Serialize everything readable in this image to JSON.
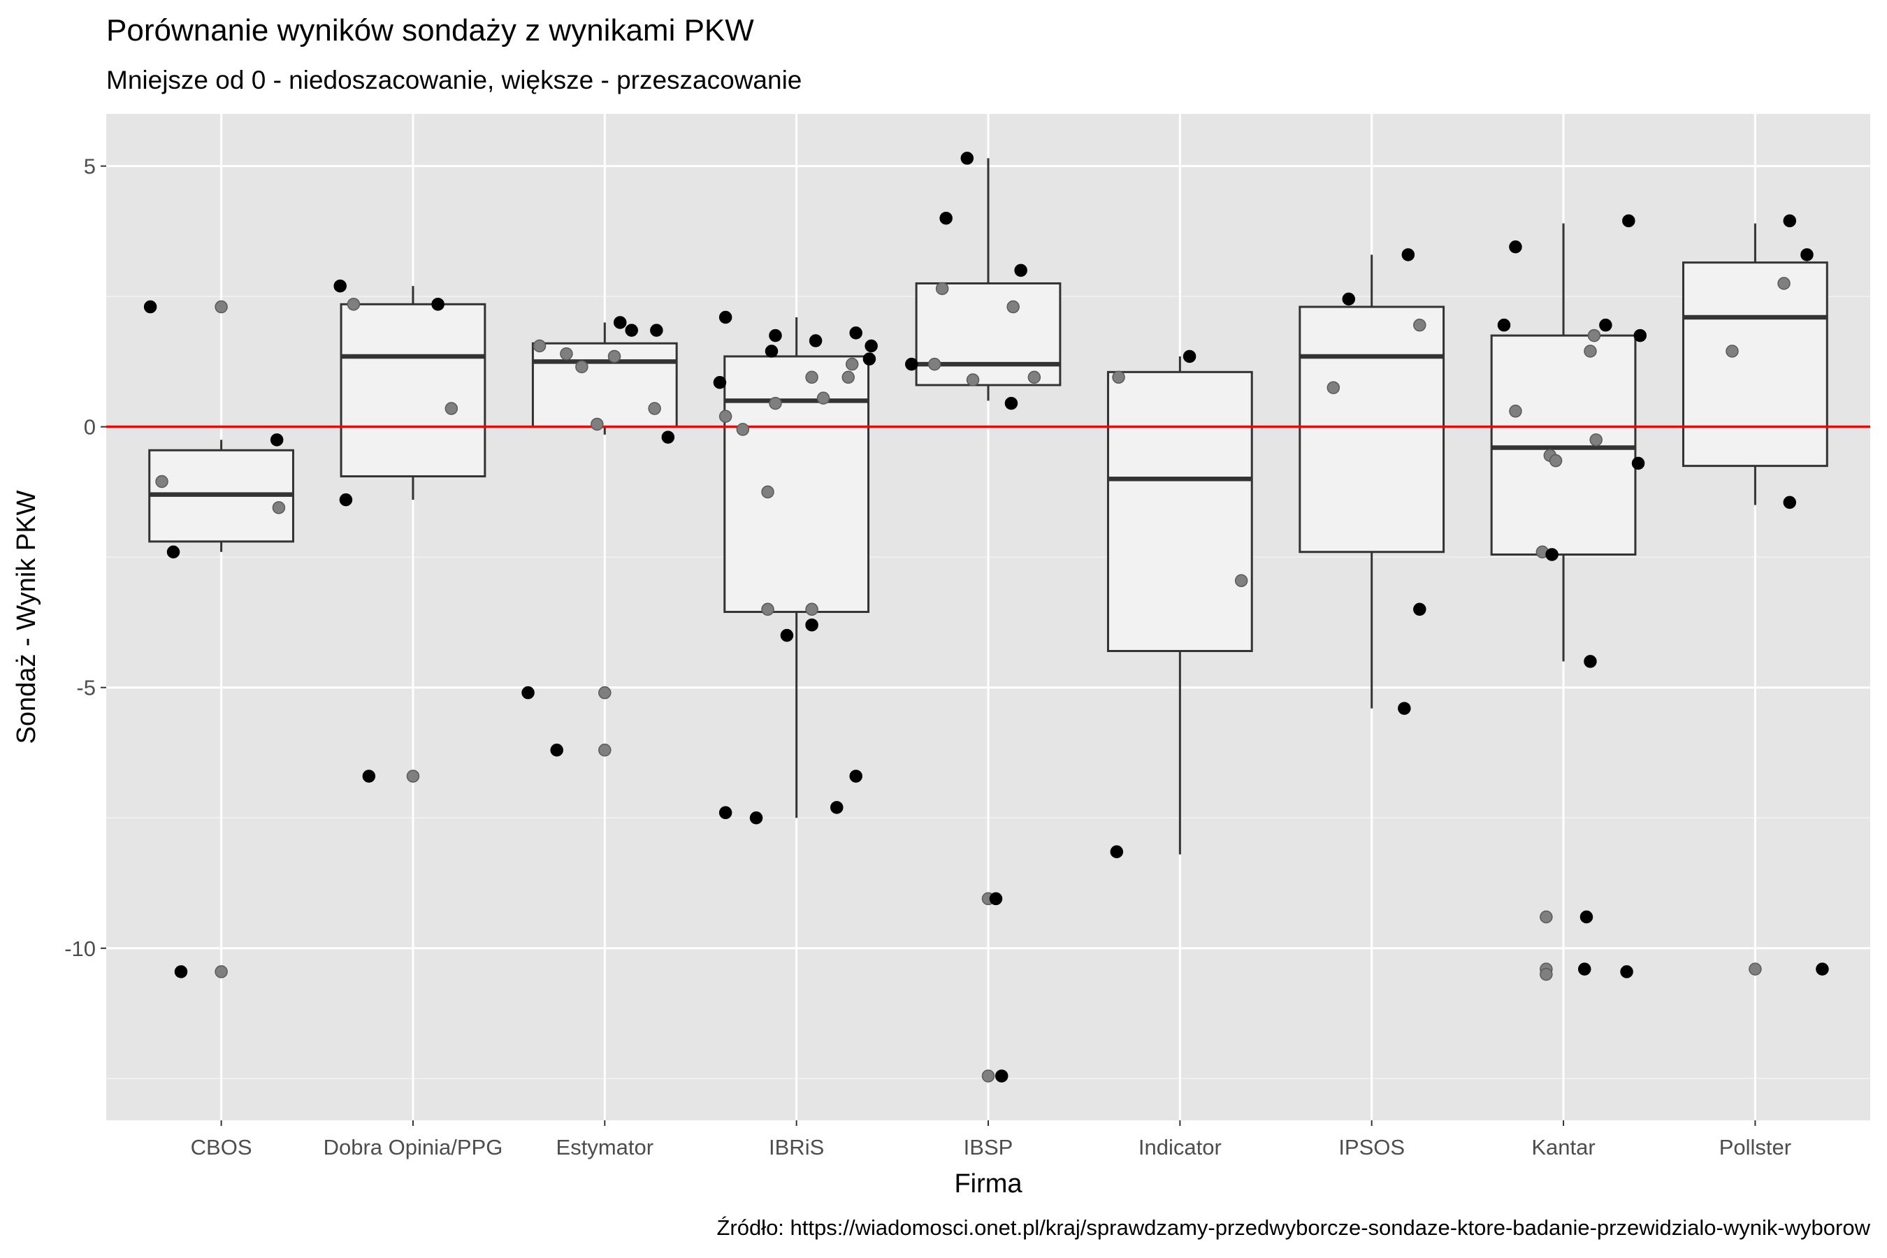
{
  "chart_data": {
    "type": "boxplot",
    "title": "Porównanie wyników sondaży z wynikami PKW",
    "subtitle": "Mniejsze od 0 - niedoszacowanie, większe - przeszacowanie",
    "xlabel": "Firma",
    "ylabel": "Sondaż - Wynik PKW",
    "caption": "Źródło: https://wiadomosci.onet.pl/kraj/sprawdzamy-przedwyborcze-sondaze-ktore-badanie-przewidzialo-wynik-wyborow",
    "ylim": [
      -13.3,
      6.0
    ],
    "yticks": [
      -10,
      -5,
      0,
      5
    ],
    "ytick_labels": [
      "-10",
      "-5",
      "0",
      "5"
    ],
    "reference_line": {
      "y": 0,
      "color": "#ff0000"
    },
    "grid": true,
    "categories": [
      "CBOS",
      "Dobra Opinia/PPG",
      "Estymator",
      "IBRiS",
      "IBSP",
      "Indicator",
      "IPSOS",
      "Kantar",
      "Pollster"
    ],
    "boxes": [
      {
        "category": "CBOS",
        "whisker_low": -2.4,
        "q1": -2.2,
        "median": -1.3,
        "q3": -0.45,
        "whisker_high": -0.25
      },
      {
        "category": "Dobra Opinia/PPG",
        "whisker_low": -1.4,
        "q1": -0.95,
        "median": 1.35,
        "q3": 2.35,
        "whisker_high": 2.7
      },
      {
        "category": "Estymator",
        "whisker_low": -0.15,
        "q1": 0.0,
        "median": 1.25,
        "q3": 1.6,
        "whisker_high": 2.0
      },
      {
        "category": "IBRiS",
        "whisker_low": -7.5,
        "q1": -3.55,
        "median": 0.5,
        "q3": 1.35,
        "whisker_high": 2.1
      },
      {
        "category": "IBSP",
        "whisker_low": 0.5,
        "q1": 0.8,
        "median": 1.2,
        "q3": 2.75,
        "whisker_high": 5.15
      },
      {
        "category": "Indicator",
        "whisker_low": -8.2,
        "q1": -4.3,
        "median": -1.0,
        "q3": 1.05,
        "whisker_high": 1.35
      },
      {
        "category": "IPSOS",
        "whisker_low": -5.4,
        "q1": -2.4,
        "median": 1.35,
        "q3": 2.3,
        "whisker_high": 3.3
      },
      {
        "category": "Kantar",
        "whisker_low": -4.5,
        "q1": -2.45,
        "median": -0.4,
        "q3": 1.75,
        "whisker_high": 3.9
      },
      {
        "category": "Pollster",
        "whisker_low": -1.5,
        "q1": -0.75,
        "median": 2.1,
        "q3": 3.15,
        "whisker_high": 3.9
      }
    ],
    "points": [
      {
        "category": "CBOS",
        "points": [
          {
            "dx": -0.37,
            "y": 2.3,
            "fill": "black"
          },
          {
            "dx": -0.31,
            "y": -1.05,
            "fill": "grey"
          },
          {
            "dx": -0.25,
            "y": -2.4,
            "fill": "black"
          },
          {
            "dx": -0.21,
            "y": -10.45,
            "fill": "black"
          },
          {
            "dx": 0.0,
            "y": 2.3,
            "fill": "grey"
          },
          {
            "dx": 0.0,
            "y": -10.45,
            "fill": "grey"
          },
          {
            "dx": 0.29,
            "y": -0.25,
            "fill": "black"
          },
          {
            "dx": 0.3,
            "y": -1.55,
            "fill": "grey"
          }
        ]
      },
      {
        "category": "Dobra Opinia/PPG",
        "points": [
          {
            "dx": -0.38,
            "y": 2.7,
            "fill": "black"
          },
          {
            "dx": -0.31,
            "y": 2.35,
            "fill": "grey"
          },
          {
            "dx": -0.35,
            "y": -1.4,
            "fill": "black"
          },
          {
            "dx": -0.23,
            "y": -6.7,
            "fill": "black"
          },
          {
            "dx": 0.0,
            "y": -6.7,
            "fill": "grey"
          },
          {
            "dx": 0.13,
            "y": 2.35,
            "fill": "grey"
          },
          {
            "dx": 0.13,
            "y": 2.35,
            "fill": "black"
          },
          {
            "dx": 0.2,
            "y": 0.35,
            "fill": "grey"
          }
        ]
      },
      {
        "category": "Estymator",
        "points": [
          {
            "dx": -0.4,
            "y": -5.1,
            "fill": "black"
          },
          {
            "dx": -0.34,
            "y": 1.55,
            "fill": "grey"
          },
          {
            "dx": -0.25,
            "y": -6.2,
            "fill": "black"
          },
          {
            "dx": -0.2,
            "y": 1.4,
            "fill": "grey"
          },
          {
            "dx": -0.12,
            "y": 1.15,
            "fill": "grey"
          },
          {
            "dx": -0.04,
            "y": 0.05,
            "fill": "grey"
          },
          {
            "dx": 0.0,
            "y": -5.1,
            "fill": "grey"
          },
          {
            "dx": 0.0,
            "y": -6.2,
            "fill": "grey"
          },
          {
            "dx": 0.05,
            "y": 1.35,
            "fill": "grey"
          },
          {
            "dx": 0.08,
            "y": 2.0,
            "fill": "black"
          },
          {
            "dx": 0.14,
            "y": 1.85,
            "fill": "black"
          },
          {
            "dx": 0.26,
            "y": 0.35,
            "fill": "grey"
          },
          {
            "dx": 0.27,
            "y": 1.85,
            "fill": "black"
          },
          {
            "dx": 0.33,
            "y": -0.2,
            "fill": "black"
          }
        ]
      },
      {
        "category": "IBRiS",
        "points": [
          {
            "dx": -0.4,
            "y": 0.85,
            "fill": "black"
          },
          {
            "dx": -0.37,
            "y": 0.2,
            "fill": "grey"
          },
          {
            "dx": -0.37,
            "y": 2.1,
            "fill": "black"
          },
          {
            "dx": -0.37,
            "y": -7.4,
            "fill": "black"
          },
          {
            "dx": -0.28,
            "y": -0.05,
            "fill": "grey"
          },
          {
            "dx": -0.21,
            "y": -7.5,
            "fill": "black"
          },
          {
            "dx": -0.15,
            "y": -1.25,
            "fill": "grey"
          },
          {
            "dx": -0.13,
            "y": 1.45,
            "fill": "black"
          },
          {
            "dx": -0.15,
            "y": -3.5,
            "fill": "grey"
          },
          {
            "dx": -0.11,
            "y": 1.75,
            "fill": "black"
          },
          {
            "dx": -0.11,
            "y": 0.45,
            "fill": "grey"
          },
          {
            "dx": -0.05,
            "y": -4.0,
            "fill": "black"
          },
          {
            "dx": 0.08,
            "y": 0.95,
            "fill": "grey"
          },
          {
            "dx": 0.08,
            "y": -3.5,
            "fill": "grey"
          },
          {
            "dx": 0.08,
            "y": -3.8,
            "fill": "black"
          },
          {
            "dx": 0.1,
            "y": 1.65,
            "fill": "black"
          },
          {
            "dx": 0.14,
            "y": 0.55,
            "fill": "grey"
          },
          {
            "dx": 0.21,
            "y": -7.3,
            "fill": "black"
          },
          {
            "dx": 0.27,
            "y": 0.95,
            "fill": "grey"
          },
          {
            "dx": 0.29,
            "y": 1.2,
            "fill": "grey"
          },
          {
            "dx": 0.31,
            "y": 1.8,
            "fill": "black"
          },
          {
            "dx": 0.31,
            "y": -6.7,
            "fill": "black"
          },
          {
            "dx": 0.38,
            "y": 1.3,
            "fill": "black"
          },
          {
            "dx": 0.39,
            "y": 1.55,
            "fill": "black"
          }
        ]
      },
      {
        "category": "IBSP",
        "points": [
          {
            "dx": -0.4,
            "y": 1.2,
            "fill": "black"
          },
          {
            "dx": -0.28,
            "y": 1.2,
            "fill": "grey"
          },
          {
            "dx": -0.24,
            "y": 2.65,
            "fill": "grey"
          },
          {
            "dx": -0.22,
            "y": 4.0,
            "fill": "black"
          },
          {
            "dx": -0.11,
            "y": 5.15,
            "fill": "black"
          },
          {
            "dx": -0.08,
            "y": 0.9,
            "fill": "grey"
          },
          {
            "dx": 0.0,
            "y": -9.05,
            "fill": "grey"
          },
          {
            "dx": 0.0,
            "y": -12.45,
            "fill": "grey"
          },
          {
            "dx": 0.04,
            "y": -9.05,
            "fill": "black"
          },
          {
            "dx": 0.07,
            "y": -12.45,
            "fill": "black"
          },
          {
            "dx": 0.12,
            "y": 0.45,
            "fill": "black"
          },
          {
            "dx": 0.13,
            "y": 2.3,
            "fill": "grey"
          },
          {
            "dx": 0.17,
            "y": 3.0,
            "fill": "black"
          },
          {
            "dx": 0.24,
            "y": 0.95,
            "fill": "grey"
          }
        ]
      },
      {
        "category": "Indicator",
        "points": [
          {
            "dx": -0.32,
            "y": 0.95,
            "fill": "grey"
          },
          {
            "dx": -0.33,
            "y": -8.15,
            "fill": "black"
          },
          {
            "dx": 0.05,
            "y": 1.35,
            "fill": "black"
          },
          {
            "dx": 0.32,
            "y": -2.95,
            "fill": "grey"
          }
        ]
      },
      {
        "category": "IPSOS",
        "points": [
          {
            "dx": -0.2,
            "y": 0.75,
            "fill": "grey"
          },
          {
            "dx": -0.12,
            "y": 2.45,
            "fill": "black"
          },
          {
            "dx": 0.17,
            "y": -5.4,
            "fill": "black"
          },
          {
            "dx": 0.19,
            "y": 3.3,
            "fill": "black"
          },
          {
            "dx": 0.25,
            "y": 1.95,
            "fill": "grey"
          },
          {
            "dx": 0.25,
            "y": -3.5,
            "fill": "black"
          }
        ]
      },
      {
        "category": "Kantar",
        "points": [
          {
            "dx": -0.25,
            "y": 3.45,
            "fill": "black"
          },
          {
            "dx": -0.25,
            "y": 0.3,
            "fill": "grey"
          },
          {
            "dx": -0.31,
            "y": 1.95,
            "fill": "black"
          },
          {
            "dx": -0.11,
            "y": -2.4,
            "fill": "grey"
          },
          {
            "dx": -0.09,
            "y": -9.4,
            "fill": "grey"
          },
          {
            "dx": -0.09,
            "y": -10.4,
            "fill": "grey"
          },
          {
            "dx": -0.09,
            "y": -10.5,
            "fill": "grey"
          },
          {
            "dx": -0.07,
            "y": -0.55,
            "fill": "grey"
          },
          {
            "dx": -0.04,
            "y": -0.65,
            "fill": "grey"
          },
          {
            "dx": -0.06,
            "y": -2.45,
            "fill": "black"
          },
          {
            "dx": 0.11,
            "y": -10.4,
            "fill": "black"
          },
          {
            "dx": 0.12,
            "y": -9.4,
            "fill": "black"
          },
          {
            "dx": 0.14,
            "y": -4.5,
            "fill": "black"
          },
          {
            "dx": 0.14,
            "y": 1.45,
            "fill": "grey"
          },
          {
            "dx": 0.16,
            "y": 1.75,
            "fill": "grey"
          },
          {
            "dx": 0.17,
            "y": -0.25,
            "fill": "grey"
          },
          {
            "dx": 0.22,
            "y": 1.95,
            "fill": "black"
          },
          {
            "dx": 0.33,
            "y": -10.45,
            "fill": "black"
          },
          {
            "dx": 0.34,
            "y": 3.95,
            "fill": "black"
          },
          {
            "dx": 0.39,
            "y": -0.7,
            "fill": "black"
          },
          {
            "dx": 0.4,
            "y": 1.75,
            "fill": "black"
          }
        ]
      },
      {
        "category": "Pollster",
        "points": [
          {
            "dx": -0.12,
            "y": 1.45,
            "fill": "grey"
          },
          {
            "dx": 0.0,
            "y": -10.4,
            "fill": "grey"
          },
          {
            "dx": 0.15,
            "y": 2.75,
            "fill": "grey"
          },
          {
            "dx": 0.18,
            "y": 3.95,
            "fill": "black"
          },
          {
            "dx": 0.18,
            "y": -1.45,
            "fill": "black"
          },
          {
            "dx": 0.27,
            "y": 3.3,
            "fill": "black"
          },
          {
            "dx": 0.35,
            "y": -10.4,
            "fill": "black"
          }
        ]
      }
    ]
  }
}
